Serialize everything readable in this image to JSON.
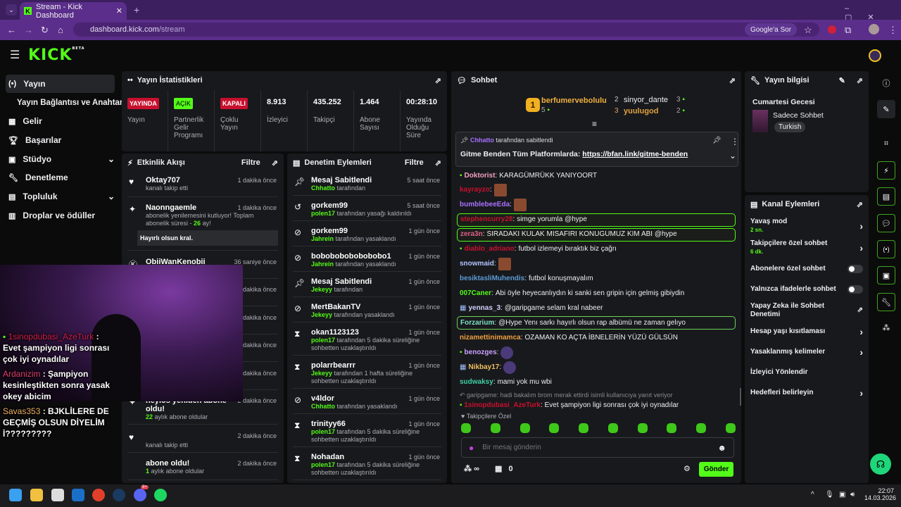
{
  "browser": {
    "tab_title": "Stream - Kick Dashboard",
    "url_host": "dashboard.kick.com",
    "url_path": "/stream",
    "google_btn": "Google'a Sor"
  },
  "brand": {
    "logo": "KICK",
    "beta": "BETA",
    "accent": "#53fc18"
  },
  "sidebar": {
    "items": [
      {
        "label": "Yayın",
        "icon": "broadcast-icon",
        "active": true
      },
      {
        "label": "Yayın Bağlantısı ve Anahtarı",
        "icon": ""
      },
      {
        "label": "Gelir",
        "icon": "revenue-icon"
      },
      {
        "label": "Başarılar",
        "icon": "trophy-icon"
      },
      {
        "label": "Stüdyo",
        "icon": "studio-icon",
        "chevron": true
      },
      {
        "label": "Denetleme",
        "icon": "wrench-icon"
      },
      {
        "label": "Topluluk",
        "icon": "community-icon",
        "chevron": true
      },
      {
        "label": "Droplar ve ödüller",
        "icon": "gift-icon"
      }
    ]
  },
  "stats": {
    "title": "Yayın İstatistikleri",
    "items": [
      {
        "badge": "YAYINDA",
        "badge_color": "#c8102e",
        "label": "Yayın"
      },
      {
        "badge": "AÇIK",
        "badge_color": "#53fc18",
        "label": "Partnerlik Gelir Programı"
      },
      {
        "badge": "KAPALI",
        "badge_color": "#c8102e",
        "label": "Çoklu Yayın"
      },
      {
        "value": "8.913",
        "label": "İzleyici"
      },
      {
        "value": "435.252",
        "label": "Takipçi"
      },
      {
        "value": "1.464",
        "label": "Abone Sayısı"
      },
      {
        "value": "00:28:10",
        "label": "Yayında Olduğu Süre"
      }
    ]
  },
  "activity": {
    "title": "Etkinlik Akışı",
    "filter": "Filtre",
    "items": [
      {
        "name": "Oktay707",
        "time": "1 dakika önce",
        "desc": "kanalı takip etti",
        "icon": "heart-icon"
      },
      {
        "name": "Naonngaemle",
        "time": "1 dakika önce",
        "desc_a": "abonelik yenilemesini kutluyor! Toplam abonelik süresi - ",
        "months": "26",
        "desc_b": " ay!",
        "quote": "Hayırlı olsun kral.",
        "icon": "sparkle-icon"
      },
      {
        "name": "ObiiWanKenobii",
        "time": "36 saniye önce",
        "icon": "kick-icon"
      },
      {
        "time": "1 dakika önce"
      },
      {
        "time": "2 dakika önce"
      },
      {
        "time": "1 dakika önce"
      },
      {
        "time": "2 dakika önce",
        "desc": "kanalı takip etti"
      },
      {
        "name": "heylos yeniden abone oldu!",
        "time": "2 dakika önce",
        "months": "22",
        "desc": " aylık abone oldular",
        "icon": "sparkle-icon"
      },
      {
        "time": "2 dakika önce",
        "desc": "kanalı takip etti",
        "icon": "heart-icon"
      },
      {
        "name": "abone oldu!",
        "time": "2 dakika önce",
        "months": "1",
        "desc": " aylık abone oldular"
      }
    ]
  },
  "moderation": {
    "title": "Denetim Eylemleri",
    "filter": "Filtre",
    "items": [
      {
        "title": "Mesaj Sabitlendi",
        "time": "5 saat önce",
        "mod": "Chhatto",
        "action": " tarafından",
        "icon": "pin-icon"
      },
      {
        "title": "gorkem99",
        "time": "5 saat önce",
        "mod": "polen17",
        "action": " tarafından yasağı kaldırıldı",
        "icon": "unban-icon"
      },
      {
        "title": "gorkem99",
        "time": "1 gün önce",
        "mod": "Jahrein",
        "action": " tarafından yasaklandı",
        "icon": "ban-icon"
      },
      {
        "title": "bobobobobobobobo1",
        "time": "1 gün önce",
        "mod": "Jahrein",
        "action": " tarafından yasaklandı",
        "icon": "ban-icon"
      },
      {
        "title": "Mesaj Sabitlendi",
        "time": "1 gün önce",
        "mod": "Jekeyy",
        "action": " tarafından",
        "icon": "pin-icon"
      },
      {
        "title": "MertBakanTV",
        "time": "1 gün önce",
        "mod": "Jekeyy",
        "action": " tarafından yasaklandı",
        "icon": "ban-icon"
      },
      {
        "title": "okan1123123",
        "time": "1 gün önce",
        "mod": "polen17",
        "action": " tarafından 5 dakika süreliğine sohbetten uzaklaştırıldı",
        "icon": "hourglass-icon"
      },
      {
        "title": "polarrbearrr",
        "time": "1 gün önce",
        "mod": "Jekeyy",
        "action": " tarafından 1 hafta süreliğine sohbetten uzaklaştırıldı",
        "icon": "hourglass-icon"
      },
      {
        "title": "v4ldor",
        "time": "1 gün önce",
        "mod": "Chhatto",
        "action": " tarafından yasaklandı",
        "icon": "ban-icon"
      },
      {
        "title": "trinityy66",
        "time": "1 gün önce",
        "mod": "polen17",
        "action": " tarafından 5 dakika süreliğine sohbetten uzaklaştırıldı",
        "icon": "hourglass-icon"
      },
      {
        "title": "Nohadan",
        "time": "1 gün önce",
        "mod": "polen17",
        "action": " tarafından 5 dakika süreliğine sohbetten uzaklaştırıldı",
        "icon": "hourglass-icon"
      }
    ]
  },
  "chat": {
    "title": "Sohbet",
    "leaders": [
      {
        "rank": "1",
        "name": "berfumervebolulu",
        "count": "5"
      },
      {
        "rank": "2",
        "name": "sinyor_dante",
        "count": "3"
      },
      {
        "rank": "3",
        "name": "yuulugod",
        "count": "2"
      }
    ],
    "pinned": {
      "by": "Chhatto",
      "by_text": " tarafından sabitlendi",
      "text": "Gitme Benden Tüm Platformlarda: ",
      "link": "https://bfan.link/gitme-benden"
    },
    "messages": [
      {
        "user": "Doktorist",
        "color": "#f0a0c0",
        "text": "KARAGÜMRÜKK YANIYOORT",
        "badge": "gift"
      },
      {
        "user": "kayrayzo",
        "color": "#c8102e",
        "emote": "e"
      },
      {
        "user": "bumblebeeEda",
        "color": "#a970ff",
        "emote": "e"
      },
      {
        "user": "stephencurry28",
        "color": "#c8102e",
        "text": "simge yorumla @hype",
        "hl": "hl"
      },
      {
        "user": "zera3n",
        "color": "#e0608a",
        "text": "SIRADAKI KULAK MISAFIRI KONUGUMUZ KIM ABI @hype",
        "hl": "hl"
      },
      {
        "user": "diablo_adriano",
        "color": "#c8102e",
        "text": "futbol izlemeyi bıraktık biz çağrı",
        "badge": "gift"
      },
      {
        "user": "snowmaid",
        "color": "#b0c4ff",
        "emote": "e"
      },
      {
        "user": "besiktasliMuhendis",
        "color": "#5b9bd5",
        "text": "futbol konuşmayalım"
      },
      {
        "user": "007Caner",
        "color": "#53fc18",
        "text": "Abi öyle heyecanlıydın ki sanki sen gripin için gelmiş gibiydin"
      },
      {
        "user": "yennas_3",
        "color": "#cfcfff",
        "text": "@garipgame selam kral nabeer",
        "badge": "multi"
      },
      {
        "user": "Forzarium",
        "color": "#7fe0c8",
        "text": "@Hype Yenı sarkı hayırlı olsun rap albümü ne zaman gelıyo",
        "hl": "hlg"
      },
      {
        "user": "nizamettinimamca",
        "color": "#f0a040",
        "text": "OZAMAN KO AÇTA İBNELERİN YÜZÜ GÜLSÜN"
      },
      {
        "user": "benozges",
        "color": "#c9a0ff",
        "emote": "p",
        "badge": "cam"
      },
      {
        "user": "Nikbay17",
        "color": "#f0c060",
        "emote": "p",
        "badge": "multi"
      },
      {
        "user": "sudwaksy",
        "color": "#40d0a0",
        "text": "mami yok mu wbi"
      }
    ],
    "reply": "garipgame: hadi bakalım brom merak ettirdi isimli kullanıcıya yanıt veriyor",
    "last": {
      "user": "1sinopdubasi_AzeTurk",
      "color": "#c8102e",
      "text": "Evet şampiyon ligi sonrası çok iyi oynadılar"
    },
    "followers_only": "Takipçilere Özel",
    "input_placeholder": "Bir mesaj gönderin",
    "points": "∞",
    "shop_count": "0",
    "send": "Gönder"
  },
  "stream_info": {
    "title": "Yayın bilgisi",
    "stream_title": "Cumartesi Gecesi",
    "category": "Sadece Sohbet",
    "language": "Turkish"
  },
  "channel_actions": {
    "title": "Kanal Eylemleri",
    "items": [
      {
        "label": "Yavaş mod",
        "sub": "2 sn.",
        "type": "chevron"
      },
      {
        "label": "Takipçilere özel sohbet",
        "sub": "6 dk.",
        "type": "chevron"
      },
      {
        "label": "Abonelere özel sohbet",
        "type": "toggle",
        "on": false
      },
      {
        "label": "Yalnızca ifadelerle sohbet",
        "type": "toggle",
        "on": false
      },
      {
        "label": "Yapay Zeka ile Sohbet Denetimi",
        "type": "external"
      },
      {
        "label": "Hesap yaşı kısıtlaması",
        "type": "chevron"
      },
      {
        "label": "Yasaklanmış kelimeler",
        "type": "chevron"
      },
      {
        "label": "İzleyici Yönlendir",
        "type": "none"
      },
      {
        "label": "Hedefleri belirleyin",
        "type": "chevron"
      }
    ]
  },
  "overlay_chat": [
    {
      "user": "1sinopdubasi_AzeTurk",
      "color": "#d0204a",
      "text": " : Evet şampiyon ligi sonrası çok iyi oynadılar"
    },
    {
      "user": "Ardanizim",
      "color": "#e0406a",
      "text": " : Şampiyon kesinleştikten sonra yasak okey abicim"
    },
    {
      "user": "Savas353",
      "color": "#f0b060",
      "text": " : BJKLİLERE DE GEÇMİŞ OLSUN DİYELİM İ?????????"
    }
  ],
  "taskbar": {
    "time": "22:07",
    "date": "14.03.2026",
    "discord_badge": "9+"
  }
}
